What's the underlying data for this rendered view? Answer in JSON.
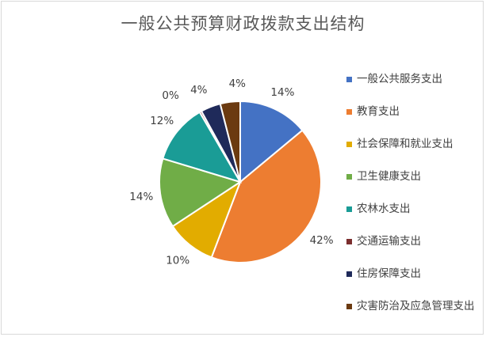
{
  "chart_data": {
    "type": "pie",
    "title": "一般公共预算财政拨款支出结构",
    "categories": [
      "一般公共服务支出",
      "教育支出",
      "社会保障和就业支出",
      "卫生健康支出",
      "农林水支出",
      "交通运输支出",
      "住房保障支出",
      "灾害防治及应急管理支出"
    ],
    "values": [
      14,
      42,
      10,
      14,
      12,
      0,
      4,
      4
    ],
    "data_labels": [
      "14%",
      "42%",
      "10%",
      "14%",
      "12%",
      "0%",
      "4%",
      "4%"
    ],
    "colors": [
      "#4472c4",
      "#ed7d31",
      "#e2ac00",
      "#70ad47",
      "#1a9c96",
      "#7b2e2e",
      "#1f2a5a",
      "#6b3a10"
    ],
    "legend_position": "right"
  }
}
